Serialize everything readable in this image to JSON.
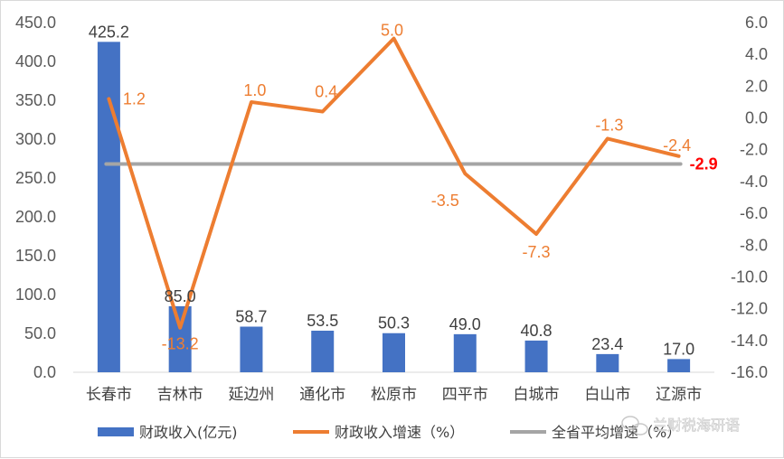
{
  "chart_data": {
    "type": "bar+line",
    "categories": [
      "长春市",
      "吉林市",
      "延边州",
      "通化市",
      "松原市",
      "四平市",
      "白城市",
      "白山市",
      "辽源市"
    ],
    "series": [
      {
        "name": "财政收入(亿元)",
        "type": "bar",
        "axis": "left",
        "color": "#4472C4",
        "values": [
          425.2,
          85.0,
          58.7,
          53.5,
          50.3,
          49.0,
          40.8,
          23.4,
          17.0
        ],
        "labels": [
          "425.2",
          "85.0",
          "58.7",
          "53.5",
          "50.3",
          "49.0",
          "40.8",
          "23.4",
          "17.0"
        ]
      },
      {
        "name": "财政收入增速（%）",
        "type": "line",
        "axis": "right",
        "color": "#ED7D31",
        "values": [
          1.2,
          -13.2,
          1.0,
          0.4,
          5.0,
          -3.5,
          -7.3,
          -1.3,
          -2.4
        ],
        "labels": [
          "1.2",
          "-13.2",
          "1.0",
          "0.4",
          "5.0",
          "-3.5",
          "-7.3",
          "-1.3",
          "-2.4"
        ]
      },
      {
        "name": "全省平均增速（%）",
        "type": "line",
        "axis": "right",
        "color": "#A5A5A5",
        "values": [
          -2.9,
          -2.9,
          -2.9,
          -2.9,
          -2.9,
          -2.9,
          -2.9,
          -2.9,
          -2.9
        ],
        "end_label": "-2.9",
        "end_label_color": "#FF0000"
      }
    ],
    "y_left": {
      "range": [
        0,
        450
      ],
      "ticks": [
        "0.0",
        "50.0",
        "100.0",
        "150.0",
        "200.0",
        "250.0",
        "300.0",
        "350.0",
        "400.0",
        "450.0"
      ]
    },
    "y_right": {
      "range": [
        -16,
        6
      ],
      "ticks": [
        "-16.0",
        "-14.0",
        "-12.0",
        "-10.0",
        "-8.0",
        "-6.0",
        "-4.0",
        "-2.0",
        "0.0",
        "2.0",
        "4.0",
        "6.0"
      ]
    },
    "grid": false,
    "legend": "bottom"
  },
  "watermark": "兰财税海研语"
}
